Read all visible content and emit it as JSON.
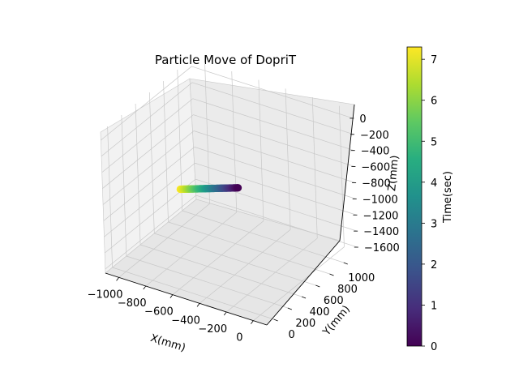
{
  "chart_data": {
    "type": "scatter",
    "projection": "3d",
    "title": "Particle Move of  DopriT",
    "xlabel": "X(mm)",
    "ylabel": "Y(mm)",
    "zlabel": "Z(mm)",
    "xlim": [
      -1100,
      100
    ],
    "ylim": [
      -100,
      1200
    ],
    "zlim": [
      -1650,
      100
    ],
    "xticks": [
      -1000,
      -800,
      -600,
      -400,
      -200,
      0
    ],
    "xtick_labels": [
      "−1000",
      "−800",
      "−600",
      "−400",
      "−200",
      "0"
    ],
    "yticks": [
      0,
      200,
      400,
      600,
      800,
      1000
    ],
    "ytick_labels": [
      "0",
      "200",
      "400",
      "600",
      "800",
      "1000"
    ],
    "zticks": [
      0,
      -200,
      -400,
      -600,
      -800,
      -1000,
      -1200,
      -1400,
      -1600
    ],
    "ztick_labels": [
      "0",
      "−200",
      "−400",
      "−600",
      "−800",
      "−1000",
      "−1200",
      "−1400",
      "−1600"
    ],
    "grid": true,
    "colormap": "viridis",
    "colorbar": {
      "label": "Time(sec)",
      "range": [
        0,
        7.3
      ],
      "ticks": [
        0,
        1,
        2,
        3,
        4,
        5,
        6,
        7
      ],
      "tick_labels": [
        "0",
        "1",
        "2",
        "3",
        "4",
        "5",
        "6",
        "7"
      ]
    },
    "trajectory": {
      "t_range": [
        0,
        7.3
      ],
      "x_range": [
        -480,
        -980
      ],
      "y_range": [
        640,
        760
      ],
      "z_range": [
        -780,
        -1150
      ],
      "color_by": "time"
    }
  }
}
